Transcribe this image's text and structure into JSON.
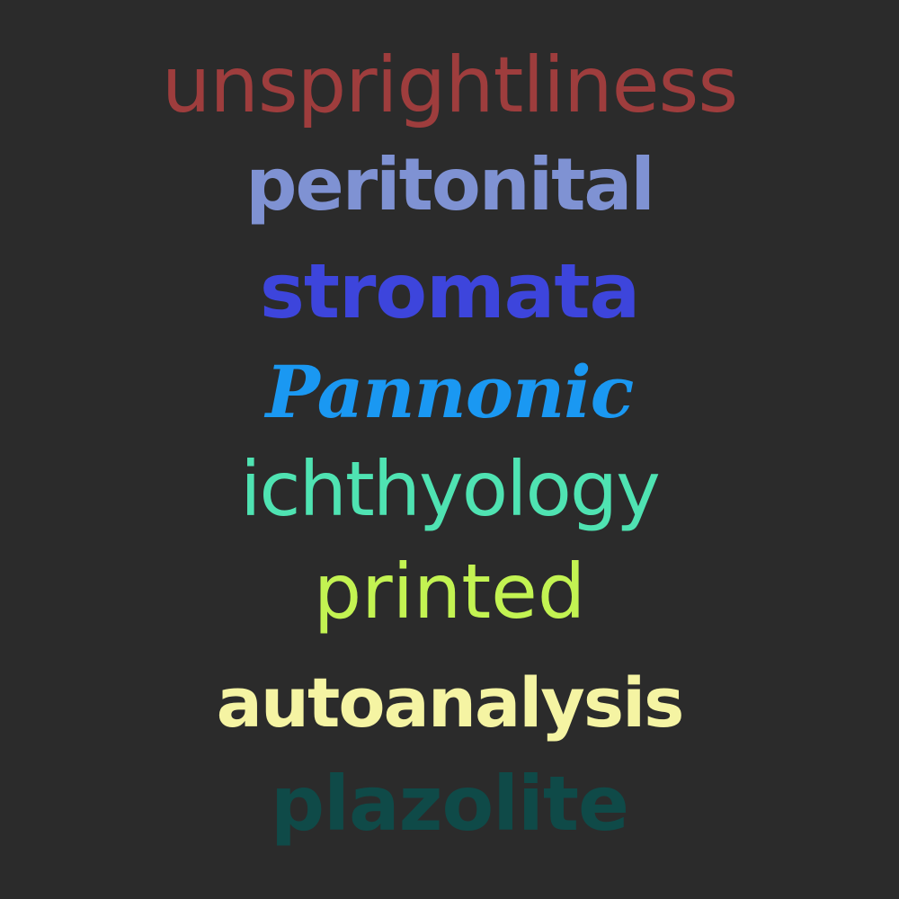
{
  "background_color": "#2b2b2b",
  "words": [
    {
      "text": "unsprightliness",
      "color": "#9e3d3d"
    },
    {
      "text": "peritonital",
      "color": "#7f92d3"
    },
    {
      "text": "stromata",
      "color": "#3d45dc"
    },
    {
      "text": "Pannonic",
      "color": "#1a98f2"
    },
    {
      "text": "ichthyology",
      "color": "#4fe3b2"
    },
    {
      "text": "printed",
      "color": "#c3f352"
    },
    {
      "text": "autoanalysis",
      "color": "#f5f4a3"
    },
    {
      "text": "plazolite",
      "color": "#0f4a48"
    }
  ]
}
